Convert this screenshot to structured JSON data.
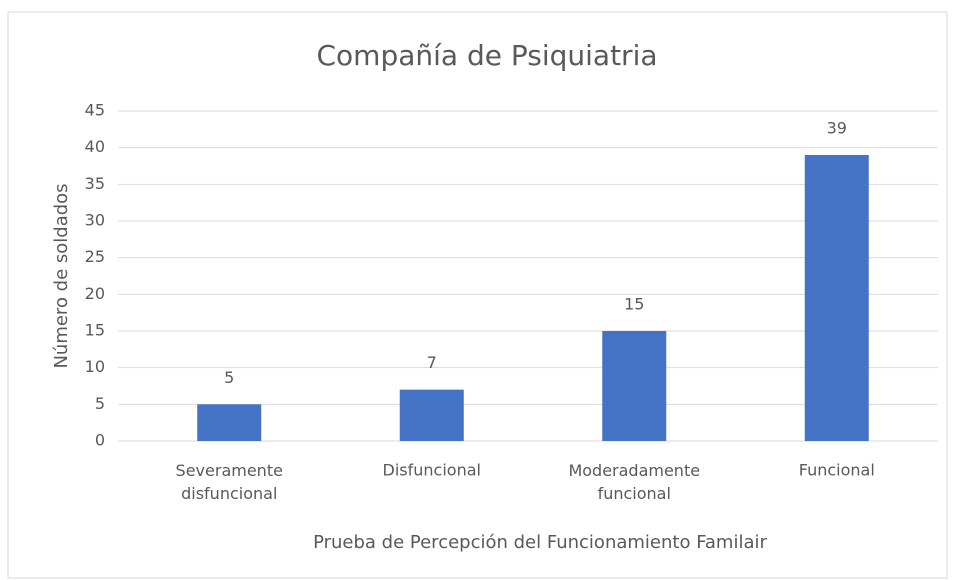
{
  "chart_data": {
    "type": "bar",
    "title": "Compañía de Psiquiatria",
    "x_label": "Prueba de Percepción del Funcionamiento Familair",
    "y_label": "Número de soldados",
    "categories": [
      "Severamente disfuncional",
      "Disfuncional",
      "Moderadamente funcional",
      "Funcional"
    ],
    "values": [
      5,
      7,
      15,
      39
    ],
    "color": "#4472c4",
    "ylim": [
      0,
      45
    ],
    "yticks": [
      0,
      5,
      10,
      15,
      20,
      25,
      30,
      35,
      40,
      45
    ],
    "grid": true
  }
}
